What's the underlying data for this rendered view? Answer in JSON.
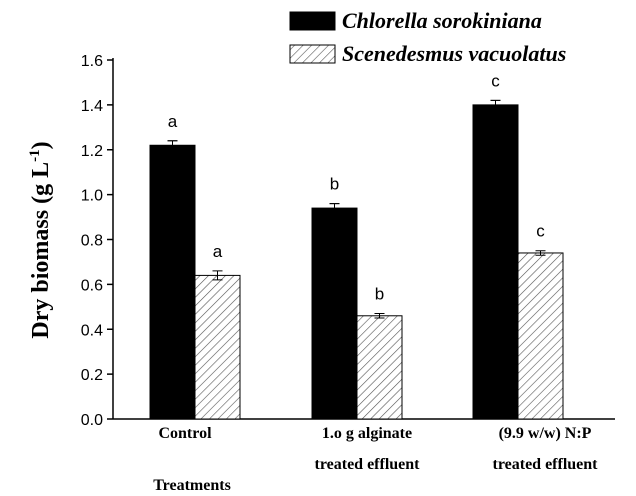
{
  "chart_data": {
    "type": "bar",
    "ylabel": {
      "text": "Dry biomass (g L",
      "sup": "-1",
      "end": ")"
    },
    "xlabel": "Treatments",
    "categories": [
      [
        "Control"
      ],
      [
        "1.o g alginate",
        "treated effluent"
      ],
      [
        "(9.9 w/w) N:P",
        "treated effluent"
      ]
    ],
    "series": [
      {
        "name": "Chlorella sorokiniana",
        "color": "#000000",
        "hatch": false,
        "values": [
          1.22,
          0.94,
          1.4
        ],
        "errors": [
          0.02,
          0.02,
          0.02
        ],
        "letters": [
          "a",
          "b",
          "c"
        ]
      },
      {
        "name": "Scenedesmus vacuolatus",
        "color": "#ffffff",
        "hatch": true,
        "values": [
          0.64,
          0.46,
          0.74
        ],
        "errors": [
          0.02,
          0.01,
          0.01
        ],
        "letters": [
          "a",
          "b",
          "c"
        ]
      }
    ],
    "ylim": [
      0,
      1.6
    ],
    "yticks": [
      {
        "value": 0,
        "label": "0.0"
      },
      0.2,
      0.4,
      0.6,
      0.8,
      {
        "value": 1,
        "label": "1.0"
      },
      1.2,
      1.4,
      1.6
    ],
    "legend": "top"
  }
}
